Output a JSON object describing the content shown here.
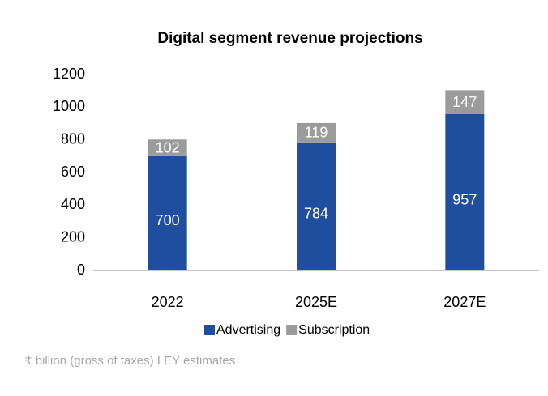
{
  "chart_data": {
    "type": "stacked_bar",
    "title": "Digital segment revenue projections",
    "categories": [
      "2022",
      "2025E",
      "2027E"
    ],
    "series": [
      {
        "name": "Advertising",
        "color": "#1f4e9e",
        "values": [
          700,
          784,
          957
        ]
      },
      {
        "name": "Subscription",
        "color": "#9b9b9b",
        "values": [
          102,
          119,
          147
        ]
      }
    ],
    "ylim": [
      0,
      1200
    ],
    "yticks": [
      0,
      200,
      400,
      600,
      800,
      1000,
      1200
    ],
    "grid": false,
    "legend": "bottom",
    "footnote": "₹ billion (gross of taxes) I EY estimates"
  }
}
